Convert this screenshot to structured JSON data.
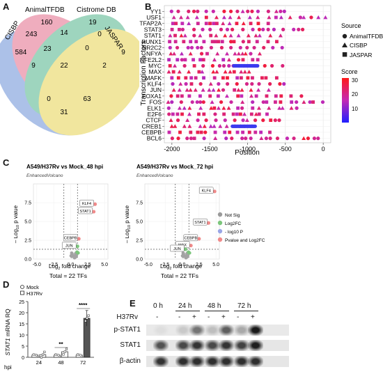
{
  "panels": {
    "A": "A",
    "B": "B",
    "C": "C",
    "D": "D",
    "E": "E"
  },
  "venn": {
    "sets": [
      {
        "name": "CISBP",
        "color": "#6a8fd6"
      },
      {
        "name": "AnimalTFDB",
        "color": "#e26b8a"
      },
      {
        "name": "Cistrome DB",
        "color": "#4fb38a"
      },
      {
        "name": "JASPAR",
        "color": "#e6d34f"
      }
    ],
    "counts": {
      "cisbp_only": "584",
      "animal_only": "160",
      "cistrome_only": "19",
      "jaspar_only": "9",
      "cisbp_animal": "243",
      "animal_cistrome": "14",
      "cistrome_jaspar": "0",
      "cisbp_jaspar": "0",
      "animal_jaspar": "0",
      "cisbp_cistrome": "2",
      "cisbp_animal_cistrome": "23",
      "animal_cistrome_jaspar": "0",
      "cisbp_animal_jaspar": "9",
      "cisbp_cistrome_jaspar": "2",
      "all": "22",
      "left_low": "0",
      "right_low": "63",
      "bottom": "31"
    }
  },
  "chart_data": [
    {
      "type": "scatter",
      "panel": "B",
      "xlabel": "Position",
      "ylabel": "Transcription Factors",
      "xlim": [
        -2100,
        100
      ],
      "xticks": [
        "-2000",
        "-1500",
        "-1000",
        "-500",
        "0"
      ],
      "categories": [
        "YY1",
        "USF1",
        "TFAP2A",
        "STAT3",
        "STAT1",
        "RUNX1",
        "NR2C2",
        "NFYA",
        "NFE2L2",
        "MYC",
        "MAX",
        "MAFK",
        "KLF4",
        "JUN",
        "FOXA1",
        "FOS",
        "ELK1",
        "E2F6",
        "CTCF",
        "CREB1",
        "CEBPB",
        "BCL6"
      ],
      "legend_source_title": "Source",
      "legend_sources": [
        "AnimalTFDB",
        "CISBP",
        "JASPAR"
      ],
      "legend_score_title": "Score",
      "score_ticks": [
        "30",
        "20",
        "10"
      ]
    },
    {
      "type": "scatter",
      "panel": "C-left",
      "title": "A549/H37Rv vs Mock_48 hpi",
      "subtitle": "EnhancedVolcano",
      "xlabel": "Log2 fold change",
      "ylabel": "-Log10 p value",
      "xlim": [
        -5.5,
        5.5
      ],
      "ylim": [
        0,
        10
      ],
      "xticks": [
        "-5.0",
        "-2.5",
        "0.0",
        "2.5",
        "5.0"
      ],
      "yticks": [
        "0.0",
        "2.5",
        "5.0",
        "7.5"
      ],
      "labels": [
        {
          "name": "KLF4",
          "x": 3.6,
          "y": 7.3
        },
        {
          "name": "STAT1",
          "x": 3.4,
          "y": 6.3
        },
        {
          "name": "CEBPB",
          "x": 1.2,
          "y": 2.7
        },
        {
          "name": "JUN",
          "x": 1.0,
          "y": 1.7
        }
      ],
      "footer": "Total = 22 TFs"
    },
    {
      "type": "scatter",
      "panel": "C-right",
      "title": "A549/H37Rv vs Mock_72 hpi",
      "subtitle": "EnhancedVolcano",
      "xlabel": "Log2 fold change",
      "ylabel": "-Log10 p value",
      "xlim": [
        -5.5,
        5.5
      ],
      "ylim": [
        0,
        10
      ],
      "xticks": [
        "-5.0",
        "-2.5",
        "0.0",
        "2.5",
        "5.0"
      ],
      "yticks": [
        "0.0",
        "2.5",
        "5.0",
        "7.5"
      ],
      "labels": [
        {
          "name": "KLF4",
          "x": 4.8,
          "y": 9.0
        },
        {
          "name": "STAT1",
          "x": 3.9,
          "y": 4.8
        },
        {
          "name": "CEBPB",
          "x": 2.5,
          "y": 2.7
        },
        {
          "name": "MAX",
          "x": 1.3,
          "y": 1.8
        },
        {
          "name": "JUN",
          "x": 0.5,
          "y": 1.3
        }
      ],
      "footer": "Total = 22 TFs"
    },
    {
      "type": "bar",
      "panel": "D",
      "categories": [
        "24",
        "48",
        "72"
      ],
      "xlabel": "hpi",
      "ylabel": "STAT1 mRNA RQ",
      "ylim": [
        0,
        25
      ],
      "yticks": [
        "0",
        "5",
        "10",
        "15",
        "20",
        "25"
      ],
      "series": [
        {
          "name": "Mock",
          "values": [
            1,
            1,
            1
          ]
        },
        {
          "name": "H37Rv",
          "values": [
            1.2,
            2.5,
            17.5
          ]
        }
      ],
      "significance": [
        "",
        "**",
        "****"
      ]
    }
  ],
  "volcano_legend": [
    "Not Sig",
    "Log2FC",
    "- log10 P",
    "Pvalue and Log2FC"
  ],
  "volcano_legend_colors": [
    "#9a9a9a",
    "#7cc67c",
    "#9aa6e6",
    "#f08a8a"
  ],
  "western": {
    "time_labels": [
      "0 h",
      "24 h",
      "48 h",
      "72 h"
    ],
    "h37rv_label": "H37Rv",
    "treatment": [
      "-",
      "-",
      "+",
      "-",
      "+",
      "-",
      "+"
    ],
    "blots": [
      "p-STAT1",
      "STAT1",
      "β-actin"
    ]
  }
}
